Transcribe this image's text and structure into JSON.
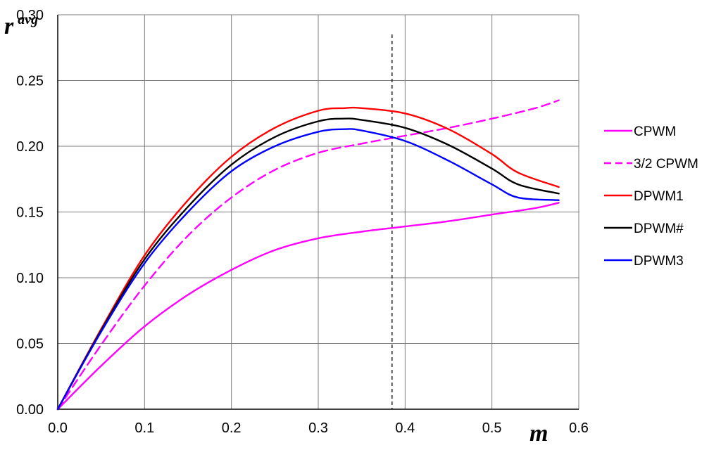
{
  "chart_data": {
    "type": "line",
    "xlabel": "m",
    "ylabel": {
      "base": "r",
      "sup": "avg"
    },
    "xlim": [
      0,
      0.6
    ],
    "ylim": [
      0,
      0.3
    ],
    "xticks": [
      "0.0",
      "0.1",
      "0.2",
      "0.3",
      "0.4",
      "0.5",
      "0.6"
    ],
    "yticks": [
      "0.00",
      "0.05",
      "0.10",
      "0.15",
      "0.20",
      "0.25",
      "0.30"
    ],
    "grid": true,
    "legend_position": "right",
    "vline": {
      "x": 0.385,
      "y_top": 0.285,
      "style": "dashed"
    },
    "series": [
      {
        "name": "CPWM",
        "color": "#ff00ff",
        "dash": "solid",
        "x": [
          0,
          0.05,
          0.1,
          0.15,
          0.2,
          0.25,
          0.3,
          0.35,
          0.4,
          0.45,
          0.5,
          0.55,
          0.577
        ],
        "y": [
          0,
          0.033,
          0.063,
          0.087,
          0.106,
          0.121,
          0.13,
          0.135,
          0.139,
          0.143,
          0.148,
          0.153,
          0.157
        ]
      },
      {
        "name": "3/2 CPWM",
        "color": "#ff00ff",
        "dash": "dashed",
        "x": [
          0,
          0.05,
          0.1,
          0.15,
          0.2,
          0.25,
          0.3,
          0.35,
          0.4,
          0.45,
          0.5,
          0.55,
          0.577
        ],
        "y": [
          0,
          0.049,
          0.094,
          0.132,
          0.161,
          0.182,
          0.195,
          0.202,
          0.208,
          0.214,
          0.221,
          0.229,
          0.235
        ]
      },
      {
        "name": "DPWM1",
        "color": "#ff0000",
        "dash": "solid",
        "x": [
          0,
          0.05,
          0.1,
          0.15,
          0.2,
          0.25,
          0.3,
          0.33,
          0.35,
          0.4,
          0.45,
          0.5,
          0.53,
          0.577
        ],
        "y": [
          0,
          0.061,
          0.117,
          0.159,
          0.192,
          0.214,
          0.227,
          0.229,
          0.229,
          0.225,
          0.213,
          0.194,
          0.18,
          0.169
        ]
      },
      {
        "name": "DPWM#",
        "color": "#000000",
        "dash": "solid",
        "x": [
          0,
          0.05,
          0.1,
          0.15,
          0.2,
          0.25,
          0.3,
          0.33,
          0.35,
          0.4,
          0.45,
          0.5,
          0.53,
          0.577
        ],
        "y": [
          0,
          0.06,
          0.114,
          0.154,
          0.186,
          0.207,
          0.219,
          0.221,
          0.22,
          0.214,
          0.201,
          0.183,
          0.171,
          0.164
        ]
      },
      {
        "name": "DPWM3",
        "color": "#0000ff",
        "dash": "solid",
        "x": [
          0,
          0.05,
          0.1,
          0.15,
          0.2,
          0.25,
          0.3,
          0.33,
          0.35,
          0.4,
          0.45,
          0.5,
          0.53,
          0.577
        ],
        "y": [
          0,
          0.059,
          0.111,
          0.15,
          0.181,
          0.2,
          0.211,
          0.213,
          0.212,
          0.204,
          0.189,
          0.171,
          0.161,
          0.159
        ]
      }
    ]
  }
}
